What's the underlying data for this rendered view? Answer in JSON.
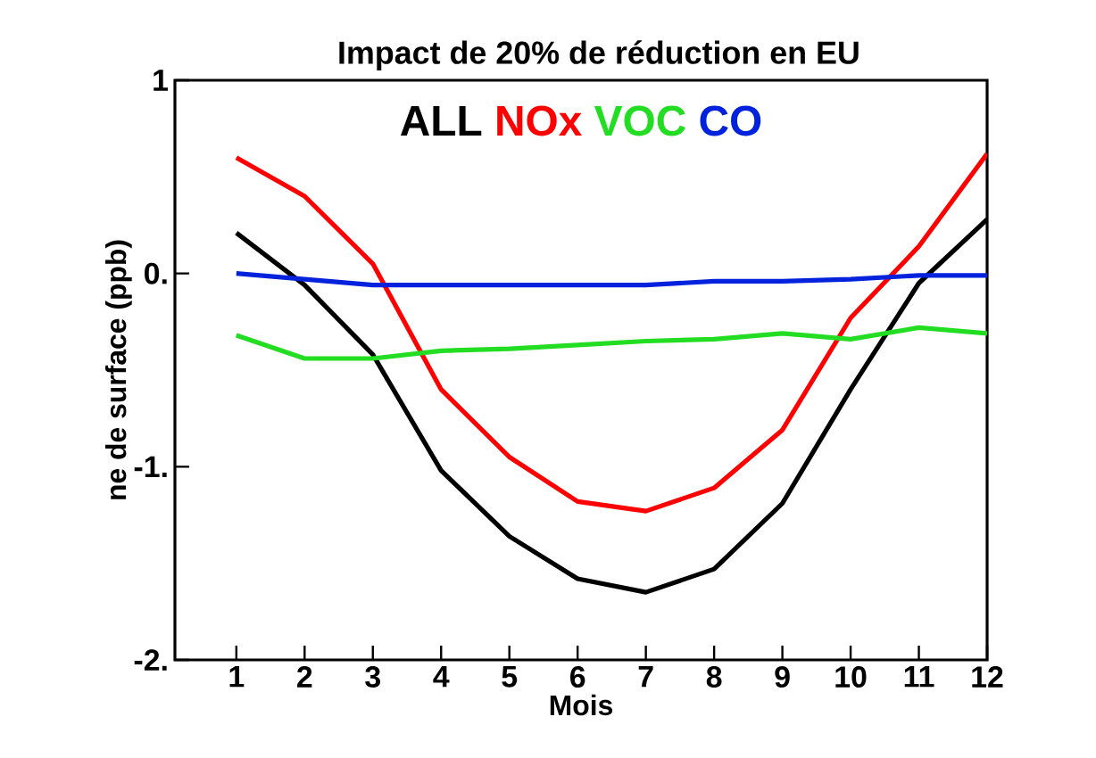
{
  "chart_data": {
    "type": "line",
    "title": "Impact de 20% de réduction en EU",
    "xlabel": "Mois",
    "ylabel": "ne de surface (ppb)",
    "x": [
      1,
      2,
      3,
      4,
      5,
      6,
      7,
      8,
      9,
      10,
      11,
      12
    ],
    "xlim": [
      0.1,
      12
    ],
    "xticks": [
      1,
      2,
      3,
      4,
      5,
      6,
      7,
      8,
      9,
      10,
      11,
      12
    ],
    "ylim": [
      -2,
      1
    ],
    "yticks": [
      {
        "value": -2,
        "label": "-2."
      },
      {
        "value": -1,
        "label": "-1."
      },
      {
        "value": 0,
        "label": "0."
      },
      1
    ],
    "legend": "top",
    "series": [
      {
        "name": "ALL",
        "color": "#000000",
        "values": [
          0.21,
          -0.06,
          -0.42,
          -1.02,
          -1.36,
          -1.58,
          -1.65,
          -1.53,
          -1.19,
          -0.6,
          -0.05,
          0.28
        ]
      },
      {
        "name": "NOx",
        "color": "#ff0000",
        "values": [
          0.6,
          0.4,
          0.05,
          -0.6,
          -0.95,
          -1.18,
          -1.23,
          -1.11,
          -0.81,
          -0.23,
          0.14,
          0.62
        ]
      },
      {
        "name": "VOC",
        "color": "#22dd22",
        "values": [
          -0.32,
          -0.44,
          -0.44,
          -0.4,
          -0.39,
          -0.37,
          -0.35,
          -0.34,
          -0.31,
          -0.34,
          -0.28,
          -0.31
        ]
      },
      {
        "name": "CO",
        "color": "#0022dd",
        "values": [
          0.0,
          -0.03,
          -0.06,
          -0.06,
          -0.06,
          -0.06,
          -0.06,
          -0.04,
          -0.04,
          -0.03,
          -0.01,
          -0.01
        ]
      }
    ]
  }
}
